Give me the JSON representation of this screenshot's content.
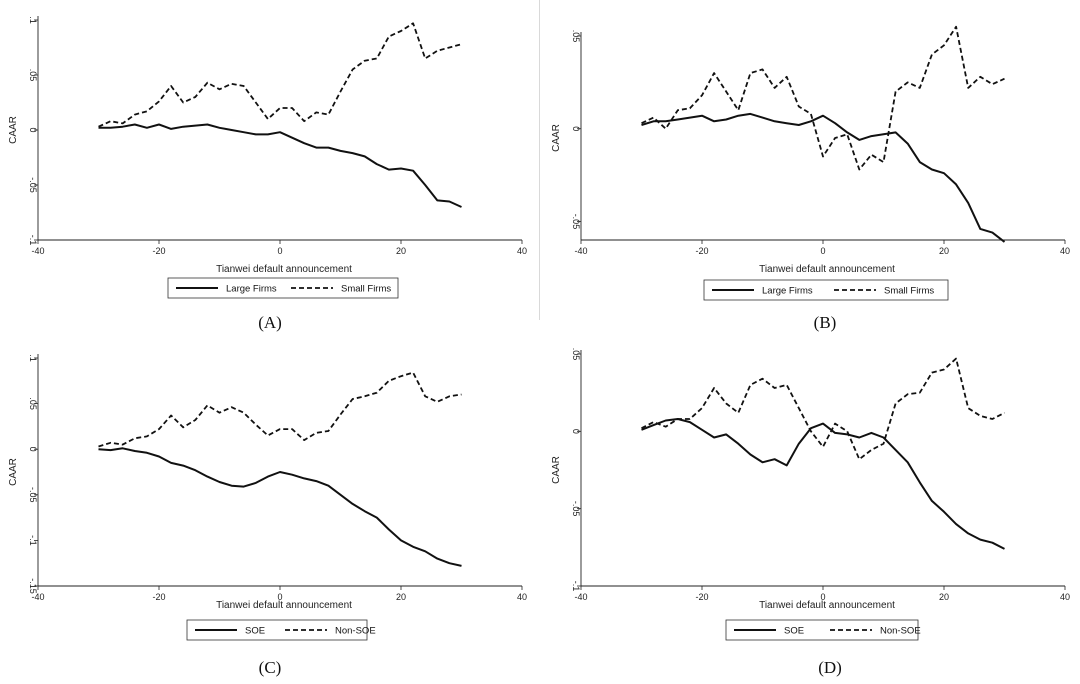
{
  "chart_data": [
    {
      "type": "line",
      "caption": "(A)",
      "xlabel": "Tianwei default announcement",
      "ylabel": "CAAR",
      "xlim": [
        -40,
        40
      ],
      "ylim": [
        -0.1,
        0.1
      ],
      "xticks": [
        -40,
        -20,
        0,
        20,
        40
      ],
      "xtick_labels": [
        "-40",
        "-20",
        "0",
        "20",
        "40"
      ],
      "yticks": [
        -0.1,
        -0.05,
        0,
        0.05,
        0.1
      ],
      "ytick_labels": [
        "-.1",
        "-.05",
        "0",
        ".05",
        ".1"
      ],
      "grid": false,
      "legend_position": "bottom",
      "series": [
        {
          "name": "Large Firms",
          "style": "solid",
          "x": [
            -30,
            -28,
            -26,
            -24,
            -22,
            -20,
            -18,
            -16,
            -14,
            -12,
            -10,
            -8,
            -6,
            -4,
            -2,
            0,
            2,
            4,
            6,
            8,
            10,
            12,
            14,
            16,
            18,
            20,
            22,
            24,
            26,
            28,
            30
          ],
          "y": [
            0.002,
            0.002,
            0.003,
            0.005,
            0.002,
            0.005,
            0.001,
            0.003,
            0.004,
            0.005,
            0.002,
            0.0,
            -0.002,
            -0.004,
            -0.004,
            -0.002,
            -0.007,
            -0.012,
            -0.016,
            -0.016,
            -0.019,
            -0.021,
            -0.024,
            -0.031,
            -0.036,
            -0.035,
            -0.037,
            -0.05,
            -0.064,
            -0.065,
            -0.07
          ]
        },
        {
          "name": "Small Firms",
          "style": "dashed",
          "x": [
            -30,
            -28,
            -26,
            -24,
            -22,
            -20,
            -18,
            -16,
            -14,
            -12,
            -10,
            -8,
            -6,
            -4,
            -2,
            0,
            2,
            4,
            6,
            8,
            10,
            12,
            14,
            16,
            18,
            20,
            22,
            24,
            26,
            28,
            30
          ],
          "y": [
            0.003,
            0.008,
            0.006,
            0.014,
            0.017,
            0.026,
            0.04,
            0.025,
            0.03,
            0.043,
            0.037,
            0.042,
            0.04,
            0.025,
            0.01,
            0.02,
            0.02,
            0.008,
            0.016,
            0.014,
            0.035,
            0.055,
            0.063,
            0.065,
            0.085,
            0.09,
            0.097,
            0.065,
            0.072,
            0.075,
            0.078
          ]
        }
      ]
    },
    {
      "type": "line",
      "caption": "(B)",
      "xlabel": "Tianwei default announcement",
      "ylabel": "CAAR",
      "xlim": [
        -40,
        40
      ],
      "ylim": [
        -0.06,
        0.05
      ],
      "xticks": [
        -40,
        -20,
        0,
        20,
        40
      ],
      "xtick_labels": [
        "-40",
        "-20",
        "0",
        "20",
        "40"
      ],
      "yticks": [
        -0.05,
        0,
        0.05
      ],
      "ytick_labels": [
        "-.05",
        "0",
        ".05"
      ],
      "grid": false,
      "legend_position": "bottom",
      "series": [
        {
          "name": "Large Firms",
          "style": "solid",
          "x": [
            -30,
            -28,
            -26,
            -24,
            -22,
            -20,
            -18,
            -16,
            -14,
            -12,
            -10,
            -8,
            -6,
            -4,
            -2,
            0,
            2,
            4,
            6,
            8,
            10,
            12,
            14,
            16,
            18,
            20,
            22,
            24,
            26,
            28,
            30
          ],
          "y": [
            0.002,
            0.004,
            0.004,
            0.005,
            0.006,
            0.007,
            0.004,
            0.005,
            0.007,
            0.008,
            0.006,
            0.004,
            0.003,
            0.002,
            0.004,
            0.007,
            0.003,
            -0.002,
            -0.006,
            -0.004,
            -0.003,
            -0.002,
            -0.008,
            -0.018,
            -0.022,
            -0.024,
            -0.03,
            -0.04,
            -0.054,
            -0.056,
            -0.061
          ]
        },
        {
          "name": "Small Firms",
          "style": "dashed",
          "x": [
            -30,
            -28,
            -26,
            -24,
            -22,
            -20,
            -18,
            -16,
            -14,
            -12,
            -10,
            -8,
            -6,
            -4,
            -2,
            0,
            2,
            4,
            6,
            8,
            10,
            12,
            14,
            16,
            18,
            20,
            22,
            24,
            26,
            28,
            30
          ],
          "y": [
            0.003,
            0.006,
            0.0,
            0.01,
            0.011,
            0.018,
            0.03,
            0.02,
            0.01,
            0.03,
            0.032,
            0.022,
            0.028,
            0.012,
            0.008,
            -0.015,
            -0.005,
            -0.003,
            -0.022,
            -0.014,
            -0.018,
            0.02,
            0.025,
            0.022,
            0.04,
            0.045,
            0.055,
            0.022,
            0.028,
            0.024,
            0.027
          ]
        }
      ]
    },
    {
      "type": "line",
      "caption": "(C)",
      "xlabel": "Tianwei default announcement",
      "ylabel": "CAAR",
      "xlim": [
        -40,
        40
      ],
      "ylim": [
        -0.15,
        0.1
      ],
      "xticks": [
        -40,
        -20,
        0,
        20,
        40
      ],
      "xtick_labels": [
        "-40",
        "-20",
        "0",
        "20",
        "40"
      ],
      "yticks": [
        -0.15,
        -0.1,
        -0.05,
        0,
        0.05,
        0.1
      ],
      "ytick_labels": [
        "-.15",
        "-.1",
        "-.05",
        "0",
        ".05",
        ".1"
      ],
      "grid": false,
      "legend_position": "bottom",
      "series": [
        {
          "name": "SOE",
          "style": "solid",
          "x": [
            -30,
            -28,
            -26,
            -24,
            -22,
            -20,
            -18,
            -16,
            -14,
            -12,
            -10,
            -8,
            -6,
            -4,
            -2,
            0,
            2,
            4,
            6,
            8,
            10,
            12,
            14,
            16,
            18,
            20,
            22,
            24,
            26,
            28,
            30
          ],
          "y": [
            0.0,
            -0.001,
            0.001,
            -0.002,
            -0.004,
            -0.008,
            -0.015,
            -0.018,
            -0.023,
            -0.03,
            -0.036,
            -0.04,
            -0.041,
            -0.037,
            -0.03,
            -0.025,
            -0.028,
            -0.032,
            -0.035,
            -0.04,
            -0.05,
            -0.06,
            -0.068,
            -0.075,
            -0.088,
            -0.1,
            -0.107,
            -0.112,
            -0.12,
            -0.125,
            -0.128
          ]
        },
        {
          "name": "Non-SOE",
          "style": "dashed",
          "x": [
            -30,
            -28,
            -26,
            -24,
            -22,
            -20,
            -18,
            -16,
            -14,
            -12,
            -10,
            -8,
            -6,
            -4,
            -2,
            0,
            2,
            4,
            6,
            8,
            10,
            12,
            14,
            16,
            18,
            20,
            22,
            24,
            26,
            28,
            30
          ],
          "y": [
            0.003,
            0.007,
            0.005,
            0.012,
            0.014,
            0.022,
            0.037,
            0.024,
            0.032,
            0.048,
            0.04,
            0.046,
            0.04,
            0.027,
            0.015,
            0.022,
            0.022,
            0.01,
            0.018,
            0.02,
            0.038,
            0.055,
            0.058,
            0.062,
            0.075,
            0.08,
            0.084,
            0.058,
            0.052,
            0.058,
            0.06
          ]
        }
      ]
    },
    {
      "type": "line",
      "caption": "(D)",
      "xlabel": "Tianwei default announcement",
      "ylabel": "CAAR",
      "xlim": [
        -40,
        40
      ],
      "ylim": [
        -0.1,
        0.05
      ],
      "xticks": [
        -40,
        -20,
        0,
        20,
        40
      ],
      "xtick_labels": [
        "-40",
        "-20",
        "0",
        "20",
        "40"
      ],
      "yticks": [
        -0.1,
        -0.05,
        0,
        0.05
      ],
      "ytick_labels": [
        "-.1",
        "-.05",
        "0",
        ".05"
      ],
      "grid": false,
      "legend_position": "bottom",
      "series": [
        {
          "name": "SOE",
          "style": "solid",
          "x": [
            -30,
            -28,
            -26,
            -24,
            -22,
            -20,
            -18,
            -16,
            -14,
            -12,
            -10,
            -8,
            -6,
            -4,
            -2,
            0,
            2,
            4,
            6,
            8,
            10,
            12,
            14,
            16,
            18,
            20,
            22,
            24,
            26,
            28,
            30
          ],
          "y": [
            0.001,
            0.004,
            0.007,
            0.008,
            0.006,
            0.001,
            -0.004,
            -0.002,
            -0.008,
            -0.015,
            -0.02,
            -0.018,
            -0.022,
            -0.008,
            0.002,
            0.005,
            -0.001,
            -0.002,
            -0.004,
            -0.001,
            -0.004,
            -0.012,
            -0.02,
            -0.033,
            -0.045,
            -0.052,
            -0.06,
            -0.066,
            -0.07,
            -0.072,
            -0.076
          ]
        },
        {
          "name": "Non-SOE",
          "style": "dashed",
          "x": [
            -30,
            -28,
            -26,
            -24,
            -22,
            -20,
            -18,
            -16,
            -14,
            -12,
            -10,
            -8,
            -6,
            -4,
            -2,
            0,
            2,
            4,
            6,
            8,
            10,
            12,
            14,
            16,
            18,
            20,
            22,
            24,
            26,
            28,
            30
          ],
          "y": [
            0.002,
            0.006,
            0.003,
            0.008,
            0.008,
            0.015,
            0.028,
            0.018,
            0.012,
            0.03,
            0.034,
            0.028,
            0.03,
            0.015,
            0.0,
            -0.01,
            0.005,
            0.0,
            -0.018,
            -0.012,
            -0.008,
            0.018,
            0.024,
            0.025,
            0.038,
            0.04,
            0.047,
            0.015,
            0.01,
            0.008,
            0.012
          ]
        }
      ]
    }
  ]
}
